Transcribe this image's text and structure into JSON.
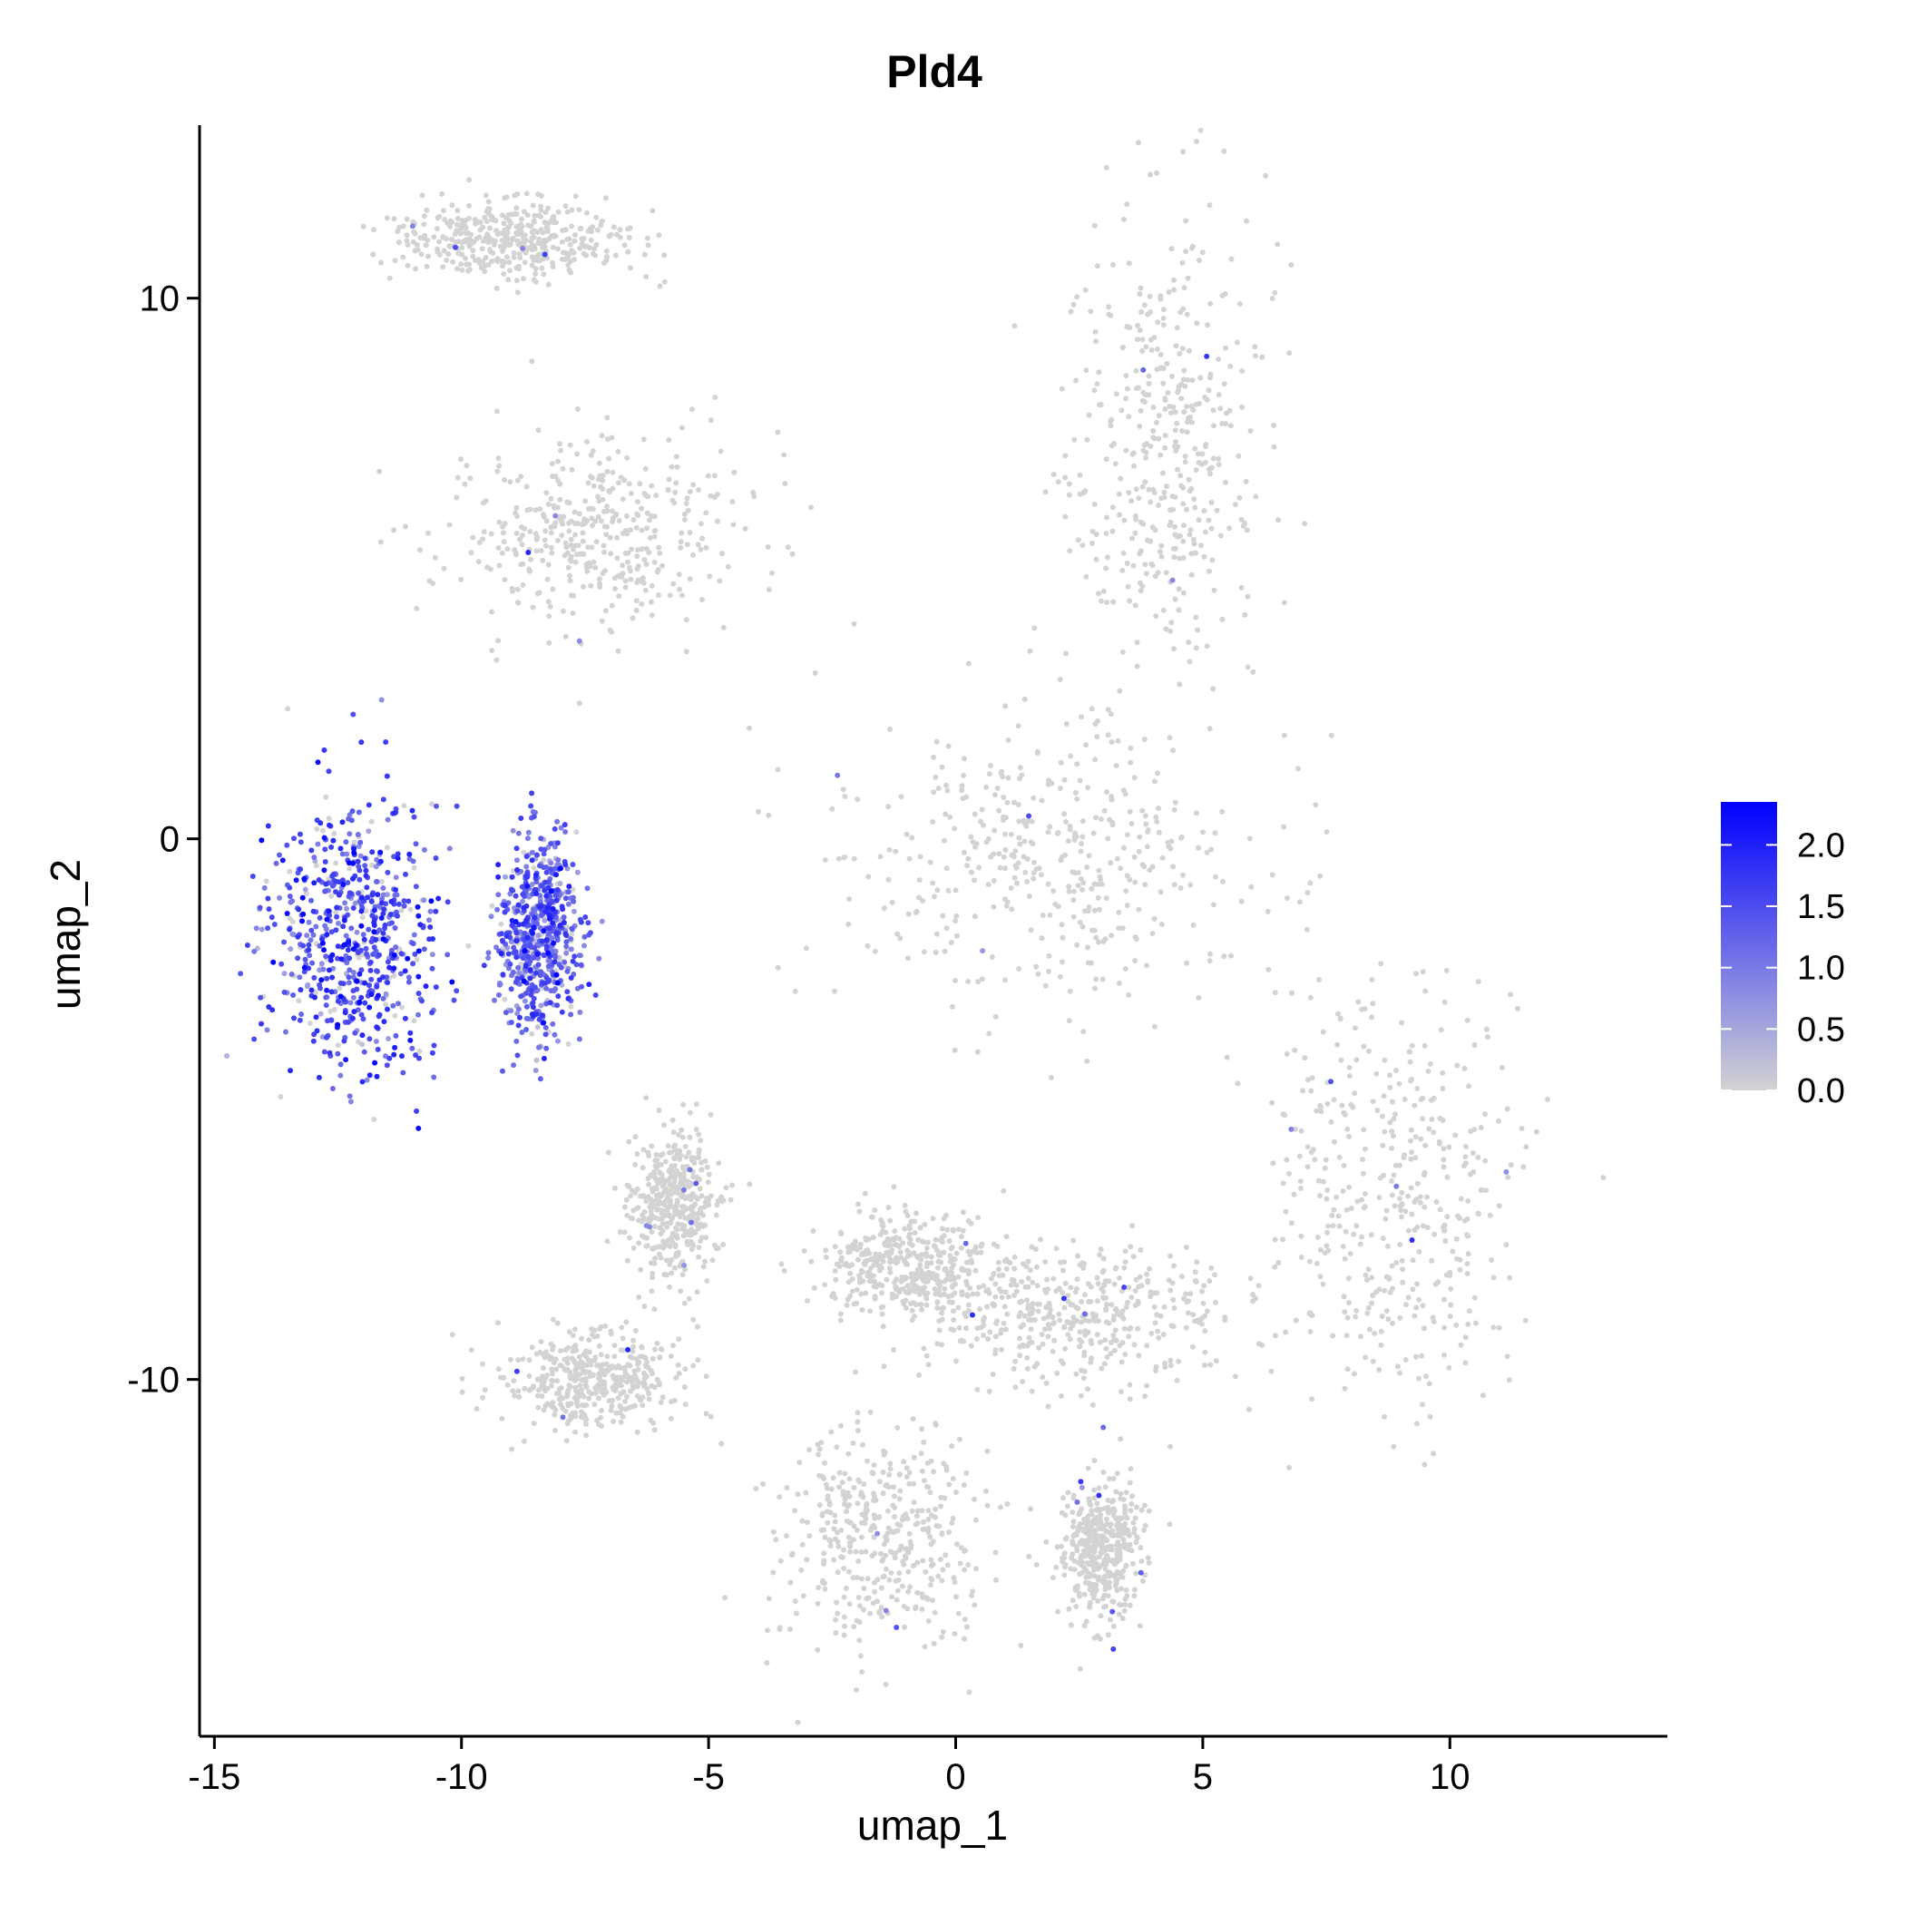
{
  "chart_data": {
    "type": "scatter",
    "title": "Pld4",
    "xlabel": "umap_1",
    "ylabel": "umap_2",
    "xlim": [
      -15.3,
      14.4
    ],
    "ylim": [
      -16.6,
      13.2
    ],
    "x_ticks": [
      -15,
      -10,
      -5,
      0,
      5,
      10
    ],
    "x_tick_labels": [
      "-15",
      "-10",
      "-5",
      "0",
      "5",
      "10"
    ],
    "y_ticks": [
      -10,
      0,
      10
    ],
    "y_tick_labels": [
      "-10",
      "0",
      "10"
    ],
    "grid": false,
    "legend": {
      "placement": "right",
      "type": "colorbar",
      "min": 0,
      "max": 2.35,
      "ticks": [
        0,
        0.5,
        1,
        1.5,
        2
      ],
      "tick_labels": [
        "0.0",
        "0.5",
        "1.0",
        "1.5",
        "2.0"
      ],
      "colors": {
        "low": "#d3d3d3",
        "high": "#0000ff"
      }
    },
    "clusters": [
      {
        "id": "top-left-arc",
        "center": [
          -9,
          11.1
        ],
        "spread": [
          2.3,
          0.7
        ],
        "mean_expression": 0.02
      },
      {
        "id": "upper-left-triangle",
        "center": [
          -7.3,
          5.7
        ],
        "spread": [
          3.0,
          1.8
        ],
        "mean_expression": 0.02
      },
      {
        "id": "big-upper-right",
        "center": [
          4.3,
          7.5
        ],
        "spread": [
          2.0,
          4.2
        ],
        "mean_expression": 0.01
      },
      {
        "id": "big-lower-body",
        "center": [
          2.0,
          -0.4
        ],
        "spread": [
          4.6,
          2.8
        ],
        "mean_expression": 0.01
      },
      {
        "id": "high-expression-left-blob",
        "center": [
          -12.2,
          -1.8
        ],
        "spread": [
          1.7,
          2.6
        ],
        "mean_expression": 1.45
      },
      {
        "id": "high-expression-right-lobe",
        "center": [
          -8.4,
          -1.8
        ],
        "spread": [
          0.8,
          1.8
        ],
        "mean_expression": 1.2
      },
      {
        "id": "right-diagonal-band",
        "center": [
          8.7,
          -6.5
        ],
        "spread": [
          2.6,
          3.8
        ],
        "mean_expression": 0.01
      },
      {
        "id": "small-mid-left",
        "center": [
          -5.7,
          -6.7
        ],
        "spread": [
          0.9,
          1.4
        ],
        "mean_expression": 0.02
      },
      {
        "id": "center-comma",
        "center": [
          -1.0,
          -7.9
        ],
        "spread": [
          1.7,
          1.0
        ],
        "mean_expression": 0.01
      },
      {
        "id": "lower-left-small",
        "center": [
          -7.4,
          -10.0
        ],
        "spread": [
          1.8,
          0.9
        ],
        "mean_expression": 0.02
      },
      {
        "id": "lower-center-loop",
        "center": [
          -1.5,
          -12.9
        ],
        "spread": [
          2.2,
          2.1
        ],
        "mean_expression": 0.01
      },
      {
        "id": "lower-right-small",
        "center": [
          3.0,
          -13.1
        ],
        "spread": [
          0.8,
          1.3
        ],
        "mean_expression": 0.01
      },
      {
        "id": "bridge",
        "center": [
          2.5,
          -8.8
        ],
        "spread": [
          3.2,
          1.3
        ],
        "mean_expression": 0.01
      }
    ]
  }
}
